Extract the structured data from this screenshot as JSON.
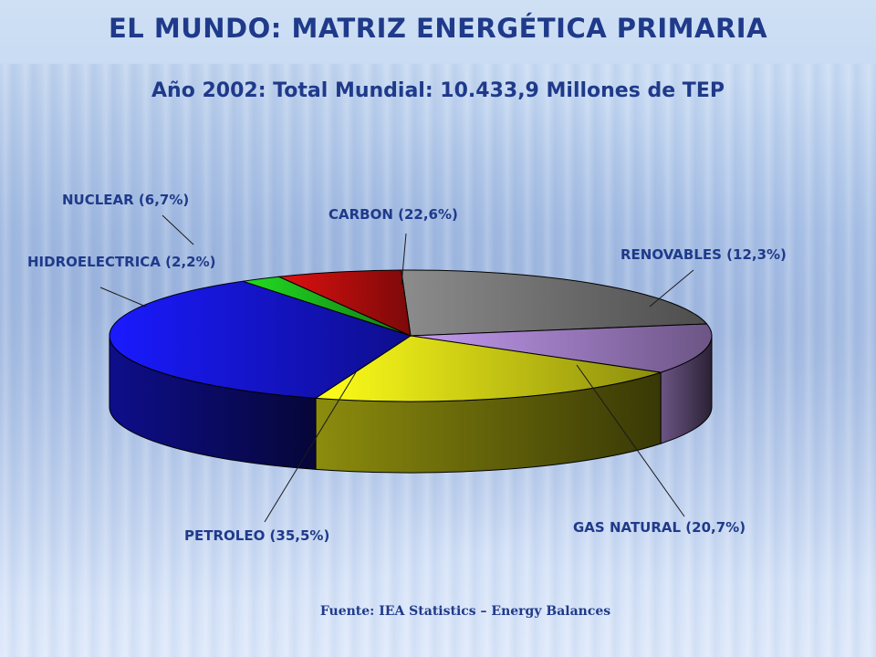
{
  "slide": {
    "title": "EL MUNDO: MATRIZ ENERGÉTICA PRIMARIA",
    "subtitle": "Año 2002: Total Mundial: 10.433,9 Millones de TEP",
    "source": "Fuente: IEA Statistics – Energy Balances"
  },
  "chart_data": {
    "type": "pie",
    "style": "3d",
    "title": "EL MUNDO: MATRIZ ENERGÉTICA PRIMARIA",
    "subtitle": "Año 2002: Total Mundial: 10.433,9 Millones de TEP",
    "unit": "%",
    "slices": [
      {
        "name": "CARBON",
        "value": 22.6,
        "label": "CARBON (22,6%)",
        "color": "#8c8c8c"
      },
      {
        "name": "RENOVABLES",
        "value": 12.3,
        "label": "RENOVABLES (12,3%)",
        "color": "#c59bf2"
      },
      {
        "name": "GAS NATURAL",
        "value": 20.7,
        "label": "GAS NATURAL (20,7%)",
        "color": "#ffff1a"
      },
      {
        "name": "PETROLEO",
        "value": 35.5,
        "label": "PETROLEO (35,5%)",
        "color": "#1a1aff"
      },
      {
        "name": "HIDROELECTRICA",
        "value": 2.2,
        "label": "HIDROELECTRICA (2,2%)",
        "color": "#22dd22"
      },
      {
        "name": "NUCLEAR",
        "value": 6.7,
        "label": "NUCLEAR (6,7%)",
        "color": "#e01010"
      }
    ]
  }
}
